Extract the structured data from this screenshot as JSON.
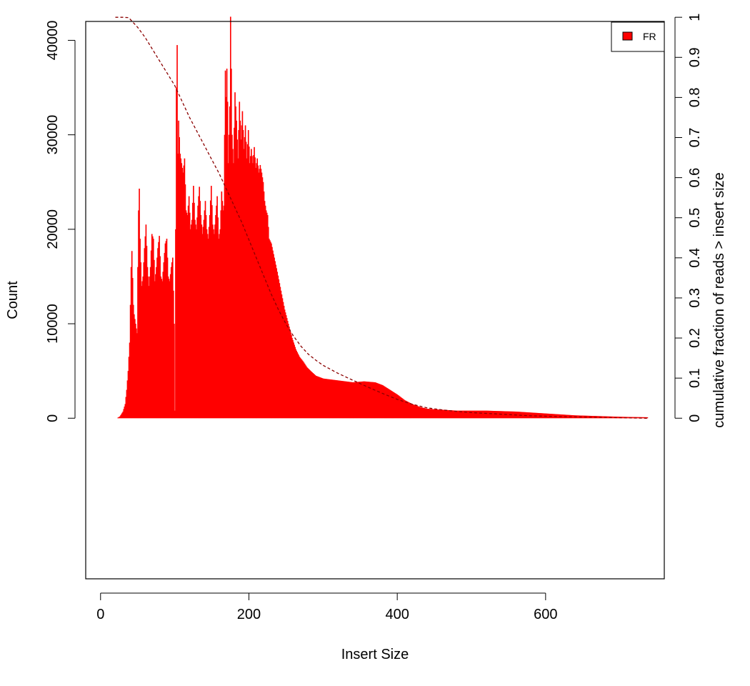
{
  "chart_data": {
    "type": "bar",
    "title": "",
    "xlabel": "Insert Size",
    "ylabel": "Count",
    "ylabel_right": "cumulative fraction of reads > insert size",
    "xlim": [
      -20,
      760
    ],
    "ylim": [
      -17000,
      42000
    ],
    "ylim_right": [
      0,
      1
    ],
    "xticks": [
      0,
      200,
      400,
      600
    ],
    "xtick_labels": [
      "0",
      "200",
      "400",
      "600"
    ],
    "yticks": [
      0,
      10000,
      20000,
      30000,
      40000
    ],
    "ytick_labels": [
      "0",
      "10000",
      "20000",
      "30000",
      "40000"
    ],
    "yticks_right": [
      0,
      0.1,
      0.2,
      0.3,
      0.4,
      0.5,
      0.6,
      0.7,
      0.8,
      0.9,
      1
    ],
    "ytick_labels_right": [
      "0",
      "0.1",
      "0.2",
      "0.3",
      "0.4",
      "0.5",
      "0.6",
      "0.7",
      "0.8",
      "0.9",
      "1"
    ],
    "grid": false,
    "legend": {
      "position": "top-right",
      "entries": [
        {
          "name": "FR",
          "color": "#ff0000"
        }
      ]
    },
    "series": [
      {
        "name": "FR",
        "kind": "histogram",
        "color": "#ff0000",
        "bin_width": 1,
        "key_points": [
          [
            22,
            0
          ],
          [
            26,
            200
          ],
          [
            30,
            700
          ],
          [
            33,
            1500
          ],
          [
            35,
            3000
          ],
          [
            37,
            5000
          ],
          [
            39,
            8000
          ],
          [
            40,
            12000
          ],
          [
            41,
            16000
          ],
          [
            42,
            17700
          ],
          [
            44,
            12000
          ],
          [
            45,
            11000
          ],
          [
            47,
            10000
          ],
          [
            49,
            9000
          ],
          [
            50,
            16000
          ],
          [
            51,
            22000
          ],
          [
            52,
            24300
          ],
          [
            53,
            19000
          ],
          [
            55,
            14000
          ],
          [
            57,
            15000
          ],
          [
            59,
            18000
          ],
          [
            61,
            20500
          ],
          [
            63,
            16000
          ],
          [
            65,
            14000
          ],
          [
            67,
            16000
          ],
          [
            69,
            19500
          ],
          [
            71,
            19000
          ],
          [
            73,
            14500
          ],
          [
            75,
            16000
          ],
          [
            77,
            18000
          ],
          [
            79,
            19300
          ],
          [
            81,
            15000
          ],
          [
            83,
            14500
          ],
          [
            85,
            16500
          ],
          [
            87,
            18500
          ],
          [
            89,
            19000
          ],
          [
            91,
            15000
          ],
          [
            93,
            14500
          ],
          [
            95,
            16000
          ],
          [
            97,
            17000
          ],
          [
            99,
            10000
          ],
          [
            100,
            800
          ],
          [
            101,
            20000
          ],
          [
            102,
            35000
          ],
          [
            103,
            39500
          ],
          [
            104,
            28000
          ],
          [
            105,
            31500
          ],
          [
            107,
            28000
          ],
          [
            109,
            27000
          ],
          [
            111,
            26000
          ],
          [
            113,
            27500
          ],
          [
            115,
            22000
          ],
          [
            117,
            21500
          ],
          [
            119,
            23500
          ],
          [
            121,
            20000
          ],
          [
            123,
            21000
          ],
          [
            125,
            24600
          ],
          [
            127,
            21000
          ],
          [
            129,
            20000
          ],
          [
            131,
            22500
          ],
          [
            133,
            24500
          ],
          [
            135,
            21500
          ],
          [
            137,
            19500
          ],
          [
            139,
            21000
          ],
          [
            141,
            23000
          ],
          [
            143,
            20000
          ],
          [
            145,
            19000
          ],
          [
            147,
            21500
          ],
          [
            149,
            24600
          ],
          [
            151,
            20500
          ],
          [
            153,
            19500
          ],
          [
            155,
            21500
          ],
          [
            157,
            23500
          ],
          [
            159,
            19000
          ],
          [
            161,
            20000
          ],
          [
            163,
            24000
          ],
          [
            165,
            22000
          ],
          [
            166,
            22500
          ],
          [
            167,
            30000
          ],
          [
            168,
            36800
          ],
          [
            169,
            34000
          ],
          [
            170,
            37000
          ],
          [
            171,
            33500
          ],
          [
            172,
            27000
          ],
          [
            173,
            30000
          ],
          [
            174,
            33000
          ],
          [
            175,
            42500
          ],
          [
            176,
            37000
          ],
          [
            177,
            30000
          ],
          [
            179,
            27000
          ],
          [
            181,
            34500
          ],
          [
            183,
            31500
          ],
          [
            185,
            27500
          ],
          [
            187,
            33500
          ],
          [
            189,
            29500
          ],
          [
            191,
            32500
          ],
          [
            193,
            28500
          ],
          [
            195,
            31000
          ],
          [
            197,
            27500
          ],
          [
            199,
            30500
          ],
          [
            201,
            27000
          ],
          [
            203,
            28500
          ],
          [
            205,
            27000
          ],
          [
            207,
            28700
          ],
          [
            209,
            26500
          ],
          [
            211,
            27500
          ],
          [
            213,
            26000
          ],
          [
            215,
            26800
          ],
          [
            217,
            26000
          ],
          [
            219,
            25000
          ],
          [
            221,
            23000
          ],
          [
            223,
            22000
          ],
          [
            225,
            21500
          ],
          [
            227,
            19000
          ],
          [
            230,
            18500
          ],
          [
            234,
            17000
          ],
          [
            238,
            15500
          ],
          [
            243,
            13500
          ],
          [
            248,
            11500
          ],
          [
            253,
            10000
          ],
          [
            258,
            8500
          ],
          [
            263,
            7300
          ],
          [
            268,
            6500
          ],
          [
            273,
            6000
          ],
          [
            278,
            5400
          ],
          [
            283,
            5000
          ],
          [
            290,
            4500
          ],
          [
            300,
            4200
          ],
          [
            320,
            4000
          ],
          [
            340,
            3800
          ],
          [
            355,
            3900
          ],
          [
            370,
            3800
          ],
          [
            380,
            3500
          ],
          [
            390,
            3000
          ],
          [
            400,
            2500
          ],
          [
            410,
            1900
          ],
          [
            420,
            1500
          ],
          [
            430,
            1200
          ],
          [
            440,
            1000
          ],
          [
            460,
            900
          ],
          [
            480,
            800
          ],
          [
            500,
            800
          ],
          [
            520,
            800
          ],
          [
            540,
            750
          ],
          [
            560,
            700
          ],
          [
            580,
            600
          ],
          [
            600,
            500
          ],
          [
            620,
            400
          ],
          [
            640,
            300
          ],
          [
            660,
            250
          ],
          [
            680,
            200
          ],
          [
            700,
            150
          ],
          [
            720,
            120
          ],
          [
            737,
            100
          ]
        ]
      },
      {
        "name": "cumulative fraction of reads > insert size",
        "kind": "line",
        "axis": "right",
        "color": "#8b0000",
        "line_style": "dashed",
        "points": [
          [
            20,
            1.0
          ],
          [
            30,
            1.0
          ],
          [
            38,
            0.999
          ],
          [
            40,
            0.995
          ],
          [
            50,
            0.975
          ],
          [
            60,
            0.95
          ],
          [
            70,
            0.92
          ],
          [
            80,
            0.89
          ],
          [
            90,
            0.86
          ],
          [
            100,
            0.83
          ],
          [
            110,
            0.79
          ],
          [
            120,
            0.75
          ],
          [
            130,
            0.715
          ],
          [
            140,
            0.68
          ],
          [
            150,
            0.645
          ],
          [
            160,
            0.61
          ],
          [
            170,
            0.57
          ],
          [
            180,
            0.53
          ],
          [
            190,
            0.49
          ],
          [
            200,
            0.445
          ],
          [
            210,
            0.4
          ],
          [
            220,
            0.355
          ],
          [
            230,
            0.31
          ],
          [
            240,
            0.27
          ],
          [
            250,
            0.235
          ],
          [
            260,
            0.205
          ],
          [
            270,
            0.18
          ],
          [
            280,
            0.16
          ],
          [
            290,
            0.145
          ],
          [
            300,
            0.132
          ],
          [
            320,
            0.112
          ],
          [
            340,
            0.095
          ],
          [
            360,
            0.078
          ],
          [
            380,
            0.062
          ],
          [
            400,
            0.047
          ],
          [
            420,
            0.035
          ],
          [
            440,
            0.026
          ],
          [
            460,
            0.021
          ],
          [
            480,
            0.017
          ],
          [
            500,
            0.014
          ],
          [
            540,
            0.01
          ],
          [
            580,
            0.006
          ],
          [
            620,
            0.004
          ],
          [
            680,
            0.002
          ],
          [
            737,
            0.0
          ]
        ]
      }
    ]
  }
}
